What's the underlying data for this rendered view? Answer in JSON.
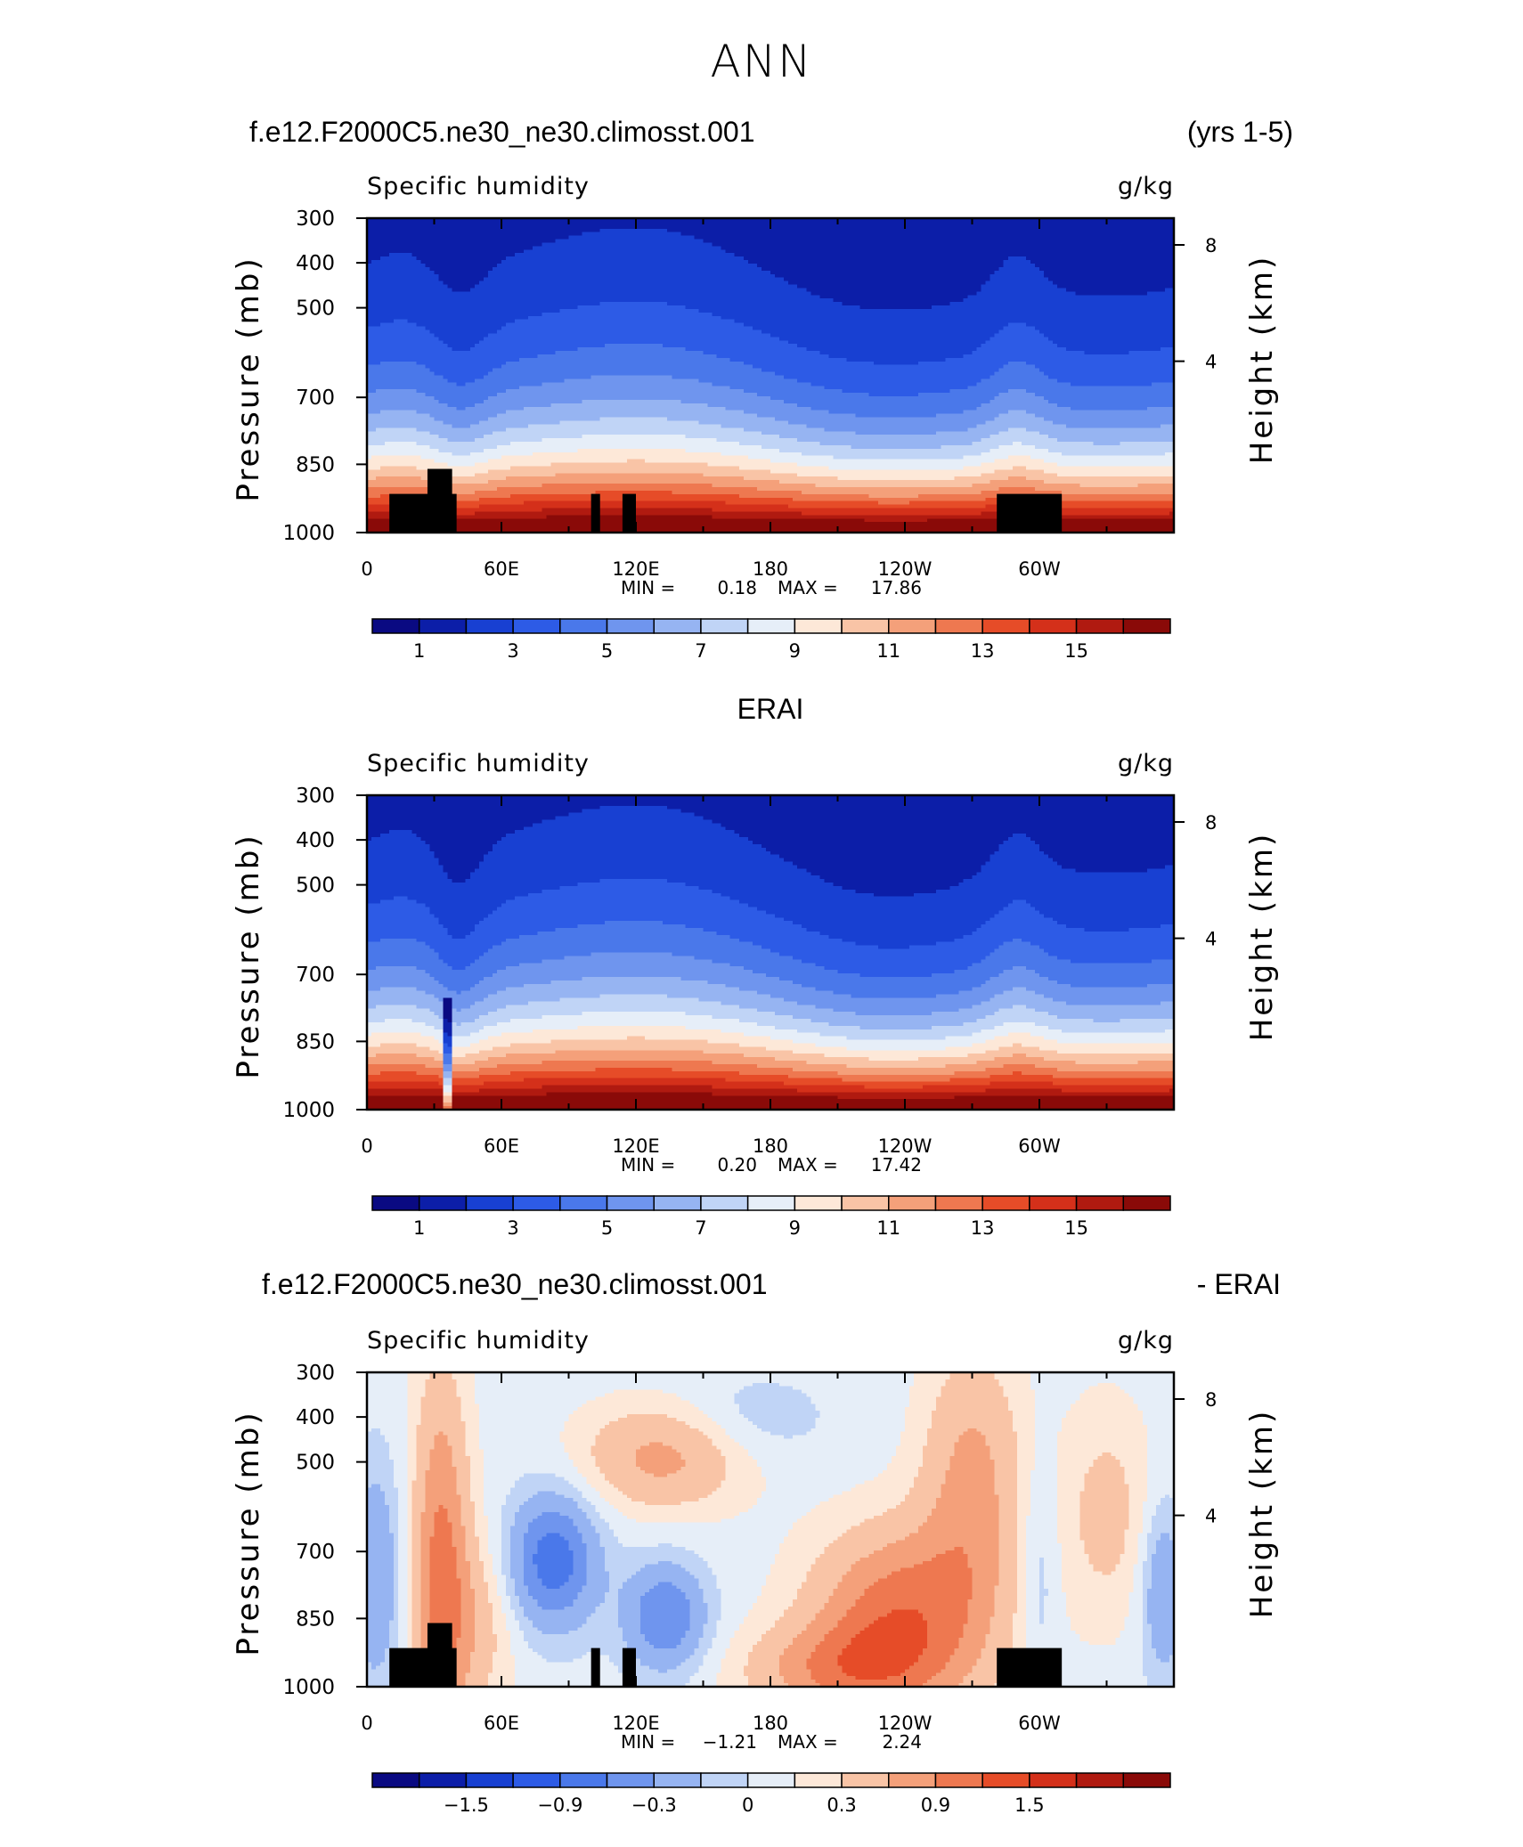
{
  "title": "ANN",
  "panel_headers": {
    "p1_left": "f.e12.F2000C5.ne30_ne30.climosst.001",
    "p1_right": "(yrs 1-5)",
    "p2_center": "ERAI",
    "p3_left": "f.e12.F2000C5.ne30_ne30.climosst.001",
    "p3_right": "- ERAI"
  },
  "colors": {
    "humidity_palette": [
      "#0a0a82",
      "#0c1ea8",
      "#1840d2",
      "#2d5be6",
      "#4a78ea",
      "#6f95ee",
      "#96b4f2",
      "#c0d4f6",
      "#e6eef8",
      "#fde8d8",
      "#f9c4a6",
      "#f4a07a",
      "#ee7850",
      "#e64c28",
      "#d4301a",
      "#b01a10",
      "#8a0a08"
    ],
    "diff_palette": [
      "#0a0a82",
      "#0c1ea8",
      "#1840d2",
      "#2d5be6",
      "#4a78ea",
      "#6f95ee",
      "#96b4f2",
      "#c0d4f6",
      "#e6eef8",
      "#fde8d8",
      "#f9c4a6",
      "#f4a07a",
      "#ee7850",
      "#e64c28",
      "#d4301a",
      "#b01a10",
      "#8a0a08"
    ],
    "terrain": "#000000"
  },
  "chart_data": [
    {
      "type": "heatmap",
      "subtitle": "Specific humidity",
      "units": "g/kg",
      "ylabel": "Pressure (mb)",
      "ylabel_right": "Height (km)",
      "x_ticklabels": [
        "0",
        "60E",
        "120E",
        "180",
        "120W",
        "60W"
      ],
      "y_ticklabels": [
        "300",
        "400",
        "500",
        "700",
        "850",
        "1000"
      ],
      "y2_ticklabels": [
        "8",
        "4"
      ],
      "ylim": [
        1000,
        300
      ],
      "stats": {
        "min_label": "MIN =",
        "min": "0.18",
        "max_label": "MAX =",
        "max": "17.86"
      },
      "colorbar_labels": [
        "1",
        "3",
        "5",
        "7",
        "9",
        "11",
        "13",
        "15"
      ],
      "levels": [
        0,
        1,
        2,
        3,
        4,
        5,
        6,
        7,
        8,
        9,
        10,
        11,
        12,
        13,
        14,
        15,
        16,
        17
      ],
      "terrain_blocks": [
        {
          "lon0": 10,
          "lon1": 40,
          "p_top": 915
        },
        {
          "lon0": 27,
          "lon1": 38,
          "p_top": 860
        },
        {
          "lon0": 100,
          "lon1": 104,
          "p_top": 915
        },
        {
          "lon0": 114,
          "lon1": 120,
          "p_top": 915
        },
        {
          "lon0": 281,
          "lon1": 310,
          "p_top": 915
        }
      ]
    },
    {
      "type": "heatmap",
      "subtitle": "Specific humidity",
      "units": "g/kg",
      "ylabel": "Pressure (mb)",
      "ylabel_right": "Height (km)",
      "x_ticklabels": [
        "0",
        "60E",
        "120E",
        "180",
        "120W",
        "60W"
      ],
      "y_ticklabels": [
        "300",
        "400",
        "500",
        "700",
        "850",
        "1000"
      ],
      "y2_ticklabels": [
        "8",
        "4"
      ],
      "ylim": [
        1000,
        300
      ],
      "stats": {
        "min_label": "MIN =",
        "min": "0.20",
        "max_label": "MAX =",
        "max": "17.42"
      },
      "colorbar_labels": [
        "1",
        "3",
        "5",
        "7",
        "9",
        "11",
        "13",
        "15"
      ],
      "levels": [
        0,
        1,
        2,
        3,
        4,
        5,
        6,
        7,
        8,
        9,
        10,
        11,
        12,
        13,
        14,
        15,
        16,
        17
      ],
      "terrain_blocks": []
    },
    {
      "type": "heatmap",
      "subtitle": "Specific humidity",
      "units": "g/kg",
      "ylabel": "Pressure (mb)",
      "ylabel_right": "Height (km)",
      "x_ticklabels": [
        "0",
        "60E",
        "120E",
        "180",
        "120W",
        "60W"
      ],
      "y_ticklabels": [
        "300",
        "400",
        "500",
        "700",
        "850",
        "1000"
      ],
      "y2_ticklabels": [
        "8",
        "4"
      ],
      "ylim": [
        1000,
        300
      ],
      "stats": {
        "min_label": "MIN =",
        "min": "−1.21",
        "max_label": "MAX =",
        "max": "2.24"
      },
      "colorbar_labels": [
        "−1.5",
        "−0.9",
        "−0.3",
        "0",
        "0.3",
        "0.9",
        "1.5"
      ],
      "levels": [
        -2.1,
        -1.8,
        -1.5,
        -1.2,
        -0.9,
        -0.6,
        -0.3,
        -0.1,
        0.1,
        0.3,
        0.6,
        0.9,
        1.2,
        1.5,
        1.8,
        2.1
      ],
      "terrain_blocks": [
        {
          "lon0": 10,
          "lon1": 40,
          "p_top": 915
        },
        {
          "lon0": 27,
          "lon1": 38,
          "p_top": 860
        },
        {
          "lon0": 100,
          "lon1": 104,
          "p_top": 915
        },
        {
          "lon0": 114,
          "lon1": 120,
          "p_top": 915
        },
        {
          "lon0": 281,
          "lon1": 310,
          "p_top": 915
        }
      ]
    }
  ]
}
